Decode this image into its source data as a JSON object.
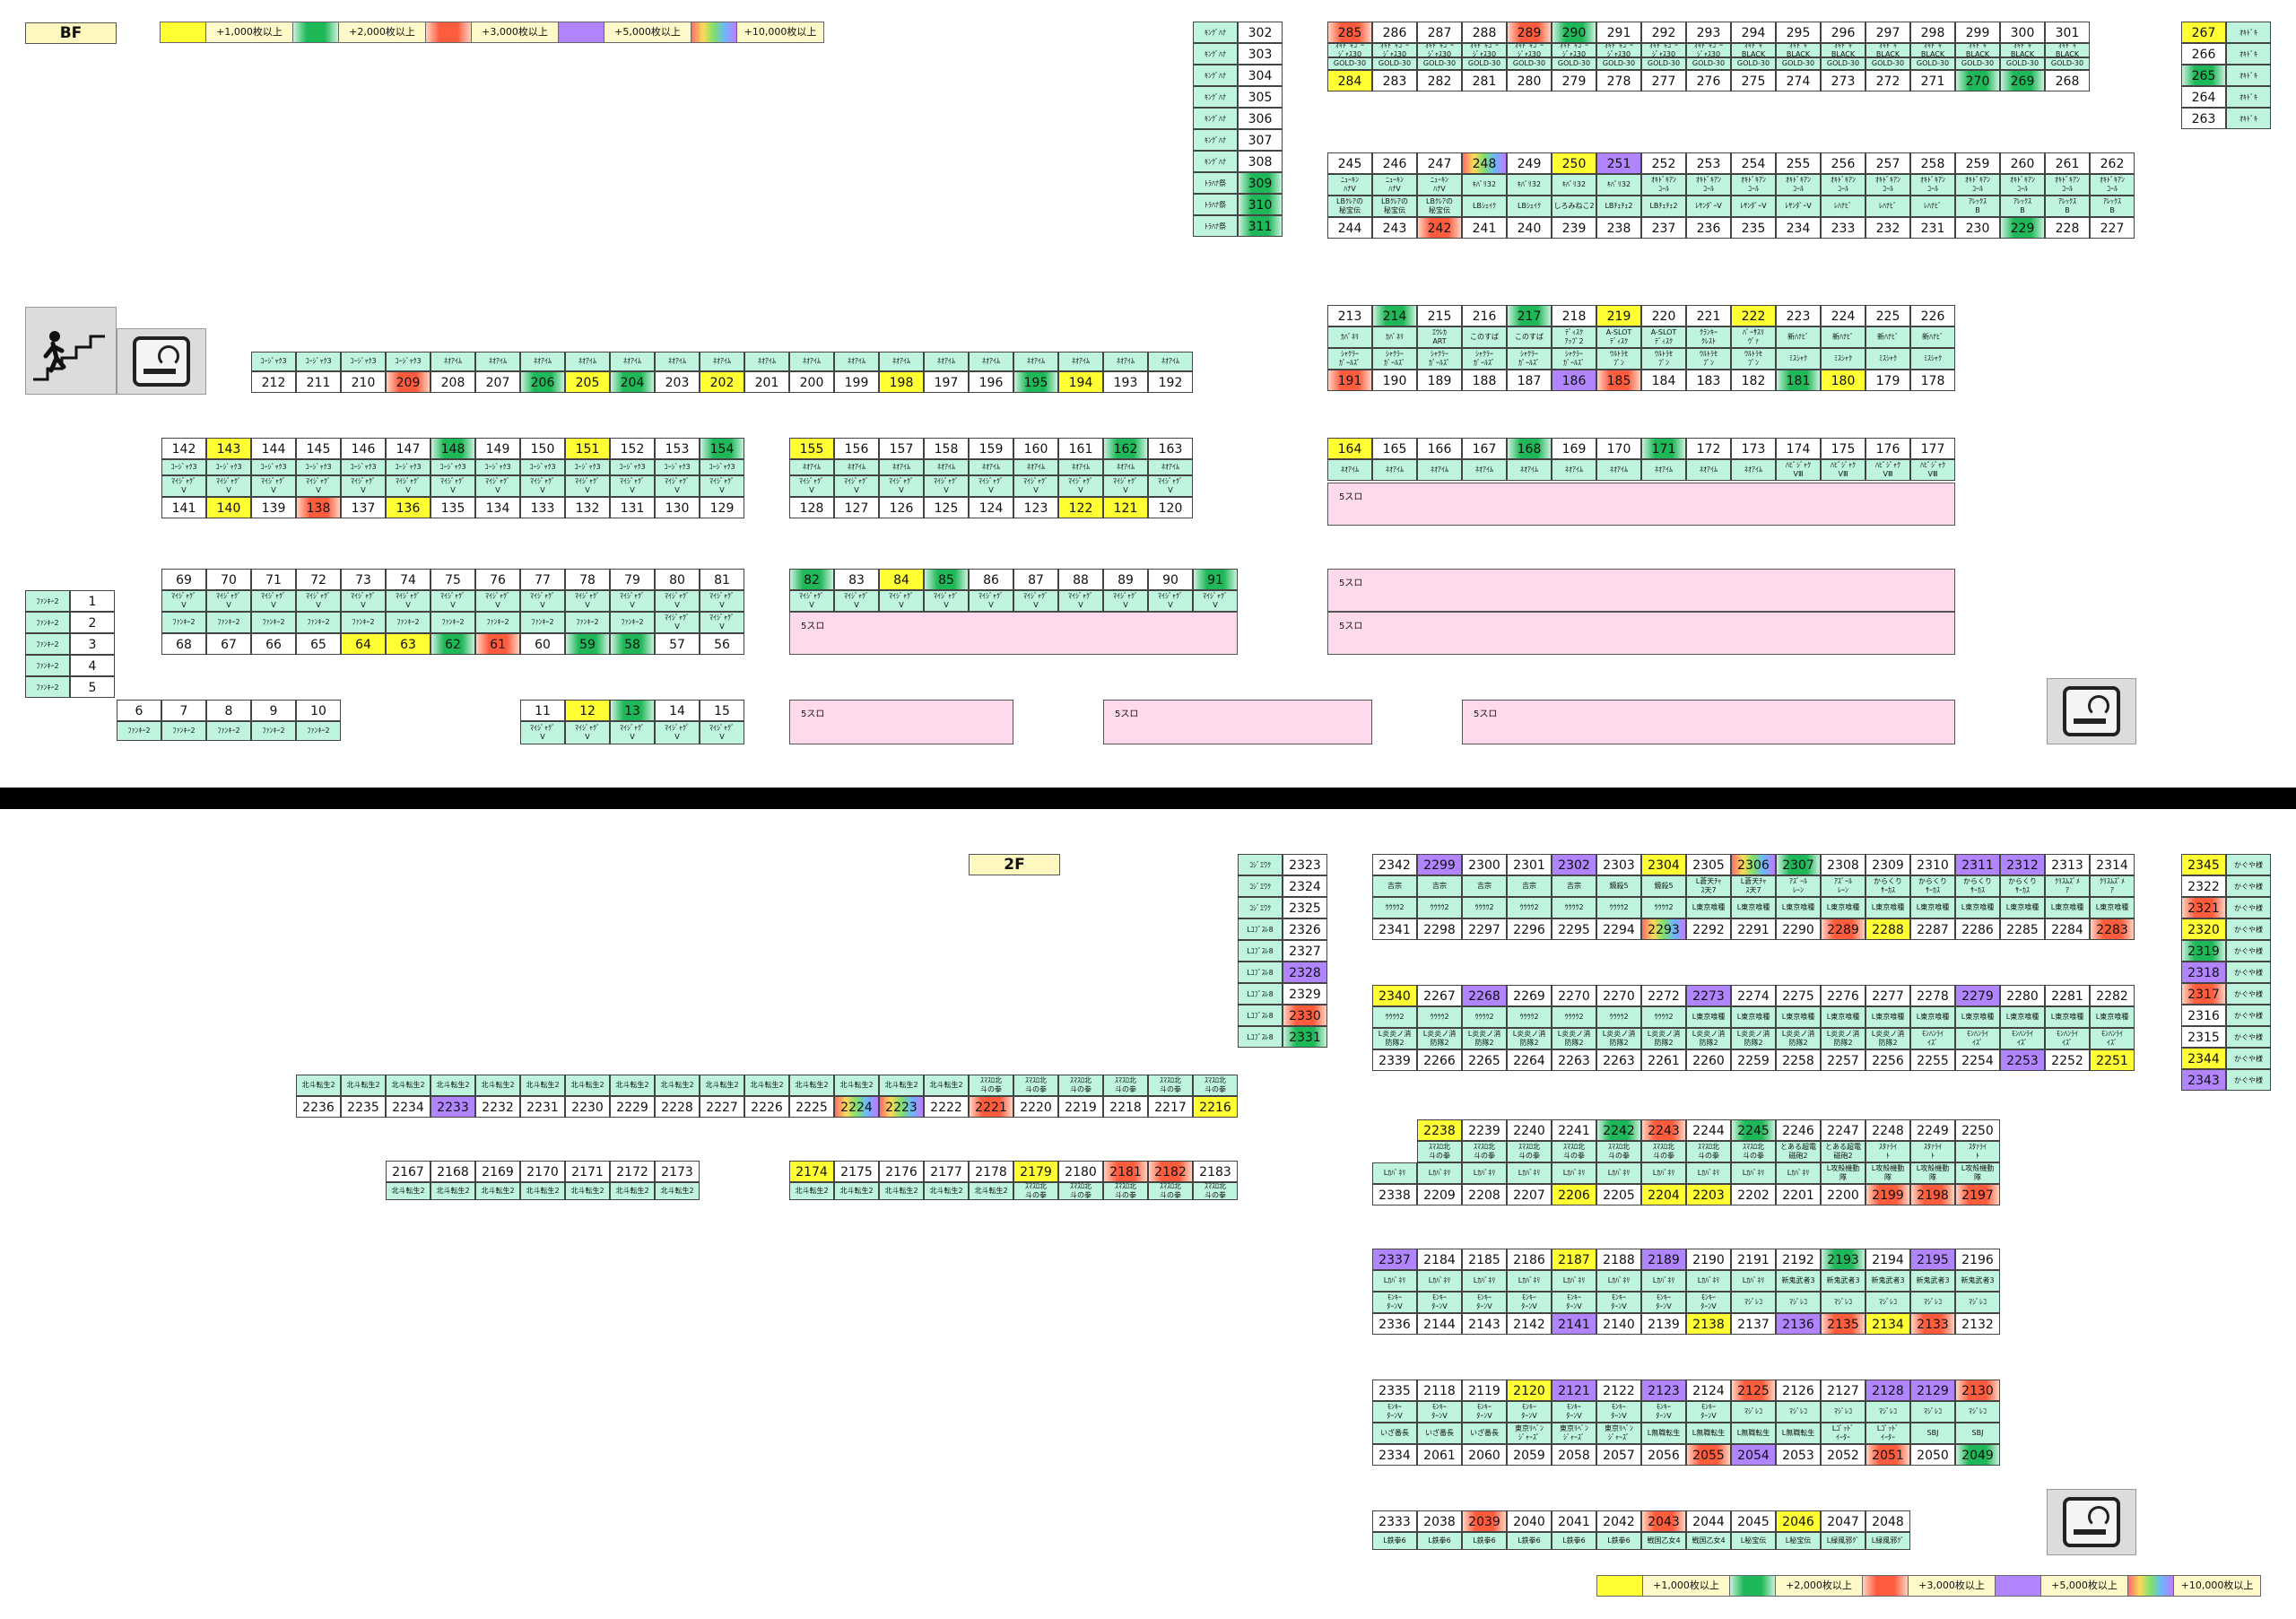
{
  "legend": [
    {
      "label": "+1,000枚以上",
      "color": "#ffff33",
      "cls": "c1"
    },
    {
      "label": "+2,000枚以上",
      "color": "#1fb858",
      "cls": "c2"
    },
    {
      "label": "+3,000枚以上",
      "color": "#ff5b3d",
      "cls": "c3"
    },
    {
      "label": "+5,000枚以上",
      "color": "#b085ff",
      "cls": "c5"
    },
    {
      "label": "+10,000枚以上",
      "color": "rainbow",
      "cls": "c10"
    }
  ],
  "floors": {
    "bf": "BF",
    "f2": "2F"
  },
  "icons": {
    "stairs": "stairs-icon",
    "smoking": "smoking-area-icon"
  },
  "zone_label": "5スロ",
  "strips": [
    {
      "id": "bf-r1-top",
      "items": [
        [
          "285",
          "ｵｷﾄﾞｷｺﾞｰ\nｼﾞｬｽ30",
          "c3"
        ],
        [
          "286",
          "ｵｷﾄﾞｷｺﾞｰ\nｼﾞｬｽ30",
          ""
        ],
        [
          "287",
          "ｵｷﾄﾞｷｺﾞｰ\nｼﾞｬｽ30",
          ""
        ],
        [
          "288",
          "ｵｷﾄﾞｷｺﾞｰ\nｼﾞｬｽ30",
          ""
        ],
        [
          "289",
          "ｵｷﾄﾞｷｺﾞｰ\nｼﾞｬｽ30",
          "c3"
        ],
        [
          "290",
          "ｵｷﾄﾞｷｺﾞｰ\nｼﾞｬｽ30",
          "c2"
        ],
        [
          "291",
          "ｵｷﾄﾞｷｺﾞｰ\nｼﾞｬｽ30",
          ""
        ],
        [
          "292",
          "ｵｷﾄﾞｷｺﾞｰ\nｼﾞｬｽ30",
          ""
        ],
        [
          "293",
          "ｵｷﾄﾞｷｺﾞｰ\nｼﾞｬｽ30",
          ""
        ],
        [
          "294",
          "ｵｷﾄﾞｷ\nBLACK",
          ""
        ],
        [
          "295",
          "ｵｷﾄﾞｷ\nBLACK",
          ""
        ],
        [
          "296",
          "ｵｷﾄﾞｷ\nBLACK",
          ""
        ],
        [
          "297",
          "ｵｷﾄﾞｷ\nBLACK",
          ""
        ],
        [
          "298",
          "ｵｷﾄﾞｷ\nBLACK",
          ""
        ],
        [
          "299",
          "ｵｷﾄﾞｷ\nBLACK",
          ""
        ],
        [
          "300",
          "ｵｷﾄﾞｷ\nBLACK",
          ""
        ],
        [
          "301",
          "ｵｷﾄﾞｷ\nBLACK",
          ""
        ]
      ]
    }
  ]
}
